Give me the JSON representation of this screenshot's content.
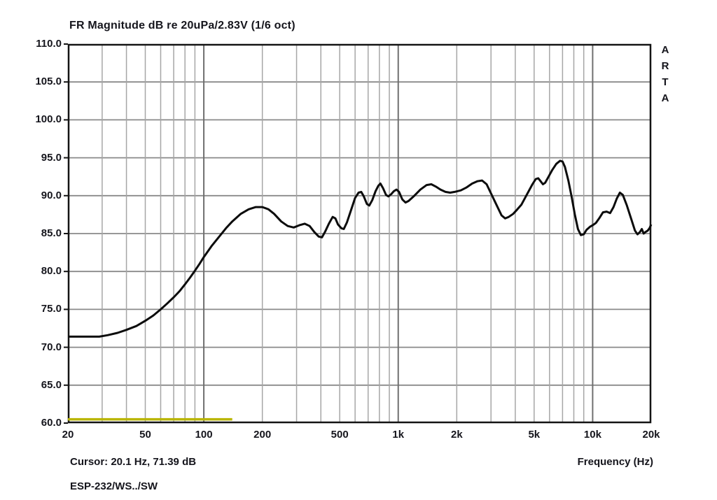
{
  "title": "FR Magnitude dB re 20uPa/2.83V (1/6 oct)",
  "watermark": "ARTA",
  "footer": {
    "cursor_readout": "Cursor: 20.1 Hz, 71.39 dB",
    "xlabel": "Frequency (Hz)",
    "overlay_label": "ESP-232/WS../SW"
  },
  "colors": {
    "background": "#ffffff",
    "text": "#15151c",
    "plot_border": "#141414",
    "grid_minor": "#a6a6a6",
    "grid_major": "#6f6f6f",
    "grid_horizontal": "#8a8a8a",
    "curve": "#0c0c0c",
    "marker_line": "#b9b500"
  },
  "axes": {
    "y": {
      "min": 60,
      "max": 110,
      "step": 5,
      "tick_labels": [
        "110.0",
        "105.0",
        "100.0",
        "95.0",
        "90.0",
        "85.0",
        "80.0",
        "75.0",
        "70.0",
        "65.0",
        "60.0"
      ]
    },
    "x": {
      "scale": "log",
      "min": 20,
      "max": 20000,
      "ticks": [
        {
          "f": 20,
          "label": "20"
        },
        {
          "f": 50,
          "label": "50"
        },
        {
          "f": 100,
          "label": "100"
        },
        {
          "f": 200,
          "label": "200"
        },
        {
          "f": 500,
          "label": "500"
        },
        {
          "f": 1000,
          "label": "1k"
        },
        {
          "f": 2000,
          "label": "2k"
        },
        {
          "f": 5000,
          "label": "5k"
        },
        {
          "f": 10000,
          "label": "10k"
        },
        {
          "f": 20000,
          "label": "20k"
        }
      ],
      "minor_gridlines": [
        30,
        40,
        50,
        60,
        70,
        80,
        90,
        200,
        300,
        400,
        500,
        600,
        700,
        800,
        900,
        2000,
        3000,
        4000,
        5000,
        6000,
        7000,
        8000,
        9000
      ],
      "major_gridlines": [
        100,
        1000,
        10000
      ]
    }
  },
  "chart_data": {
    "type": "line",
    "title": "FR Magnitude dB re 20uPa/2.83V (1/6 oct)",
    "xlabel": "Frequency (Hz)",
    "ylabel": "dB re 20uPa/2.83V",
    "xscale": "log",
    "xlim": [
      20,
      20000
    ],
    "ylim": [
      60,
      110
    ],
    "grid": true,
    "legend": "none",
    "cursor": {
      "freq_hz": 20.1,
      "level_db": 71.39
    },
    "series": [
      {
        "name": "frequency-response",
        "color": "#0c0c0c",
        "width": 3,
        "points": [
          [
            20,
            71.4
          ],
          [
            23,
            71.4
          ],
          [
            26,
            71.4
          ],
          [
            29,
            71.4
          ],
          [
            32,
            71.6
          ],
          [
            36,
            71.9
          ],
          [
            40,
            72.3
          ],
          [
            45,
            72.8
          ],
          [
            50,
            73.5
          ],
          [
            55,
            74.2
          ],
          [
            60,
            75.0
          ],
          [
            65,
            75.8
          ],
          [
            70,
            76.6
          ],
          [
            75,
            77.4
          ],
          [
            80,
            78.3
          ],
          [
            85,
            79.2
          ],
          [
            90,
            80.1
          ],
          [
            95,
            81.0
          ],
          [
            100,
            81.9
          ],
          [
            110,
            83.4
          ],
          [
            120,
            84.6
          ],
          [
            130,
            85.7
          ],
          [
            140,
            86.6
          ],
          [
            155,
            87.6
          ],
          [
            170,
            88.2
          ],
          [
            185,
            88.5
          ],
          [
            200,
            88.5
          ],
          [
            215,
            88.2
          ],
          [
            230,
            87.6
          ],
          [
            250,
            86.6
          ],
          [
            270,
            86.0
          ],
          [
            290,
            85.8
          ],
          [
            310,
            86.1
          ],
          [
            330,
            86.3
          ],
          [
            350,
            86.0
          ],
          [
            370,
            85.2
          ],
          [
            390,
            84.6
          ],
          [
            405,
            84.5
          ],
          [
            420,
            85.2
          ],
          [
            440,
            86.3
          ],
          [
            460,
            87.2
          ],
          [
            475,
            87.0
          ],
          [
            490,
            86.2
          ],
          [
            510,
            85.7
          ],
          [
            525,
            85.6
          ],
          [
            545,
            86.5
          ],
          [
            570,
            88.0
          ],
          [
            600,
            89.7
          ],
          [
            625,
            90.4
          ],
          [
            645,
            90.5
          ],
          [
            665,
            89.9
          ],
          [
            690,
            88.9
          ],
          [
            710,
            88.7
          ],
          [
            735,
            89.4
          ],
          [
            765,
            90.6
          ],
          [
            790,
            91.3
          ],
          [
            810,
            91.6
          ],
          [
            835,
            91.0
          ],
          [
            865,
            90.1
          ],
          [
            890,
            89.9
          ],
          [
            920,
            90.2
          ],
          [
            950,
            90.6
          ],
          [
            980,
            90.8
          ],
          [
            1010,
            90.5
          ],
          [
            1050,
            89.5
          ],
          [
            1090,
            89.1
          ],
          [
            1130,
            89.3
          ],
          [
            1200,
            89.9
          ],
          [
            1300,
            90.8
          ],
          [
            1400,
            91.4
          ],
          [
            1480,
            91.5
          ],
          [
            1560,
            91.2
          ],
          [
            1650,
            90.8
          ],
          [
            1750,
            90.5
          ],
          [
            1850,
            90.4
          ],
          [
            1950,
            90.5
          ],
          [
            2100,
            90.7
          ],
          [
            2250,
            91.1
          ],
          [
            2400,
            91.6
          ],
          [
            2550,
            91.9
          ],
          [
            2700,
            92.0
          ],
          [
            2850,
            91.5
          ],
          [
            3000,
            90.3
          ],
          [
            3200,
            88.8
          ],
          [
            3400,
            87.4
          ],
          [
            3550,
            87.0
          ],
          [
            3700,
            87.2
          ],
          [
            3900,
            87.6
          ],
          [
            4100,
            88.2
          ],
          [
            4300,
            88.8
          ],
          [
            4600,
            90.2
          ],
          [
            4900,
            91.5
          ],
          [
            5100,
            92.2
          ],
          [
            5250,
            92.3
          ],
          [
            5400,
            91.9
          ],
          [
            5550,
            91.5
          ],
          [
            5700,
            91.7
          ],
          [
            5900,
            92.4
          ],
          [
            6200,
            93.4
          ],
          [
            6500,
            94.2
          ],
          [
            6800,
            94.6
          ],
          [
            7000,
            94.5
          ],
          [
            7200,
            93.8
          ],
          [
            7500,
            92.0
          ],
          [
            7800,
            89.8
          ],
          [
            8100,
            87.5
          ],
          [
            8400,
            85.6
          ],
          [
            8700,
            84.8
          ],
          [
            9000,
            84.9
          ],
          [
            9300,
            85.5
          ],
          [
            9700,
            85.9
          ],
          [
            10000,
            86.1
          ],
          [
            10400,
            86.4
          ],
          [
            10800,
            87.0
          ],
          [
            11300,
            87.8
          ],
          [
            11800,
            87.9
          ],
          [
            12300,
            87.7
          ],
          [
            12800,
            88.5
          ],
          [
            13300,
            89.6
          ],
          [
            13800,
            90.4
          ],
          [
            14300,
            90.1
          ],
          [
            15000,
            88.7
          ],
          [
            15800,
            86.9
          ],
          [
            16500,
            85.4
          ],
          [
            17000,
            84.9
          ],
          [
            17500,
            85.2
          ],
          [
            17900,
            85.6
          ],
          [
            18300,
            85.0
          ],
          [
            18700,
            85.2
          ],
          [
            19200,
            85.4
          ],
          [
            19600,
            85.7
          ],
          [
            20000,
            86.2
          ]
        ]
      },
      {
        "name": "marker-line",
        "color": "#b9b500",
        "width": 3.5,
        "points": [
          [
            20,
            60.5
          ],
          [
            140,
            60.5
          ]
        ]
      }
    ]
  }
}
